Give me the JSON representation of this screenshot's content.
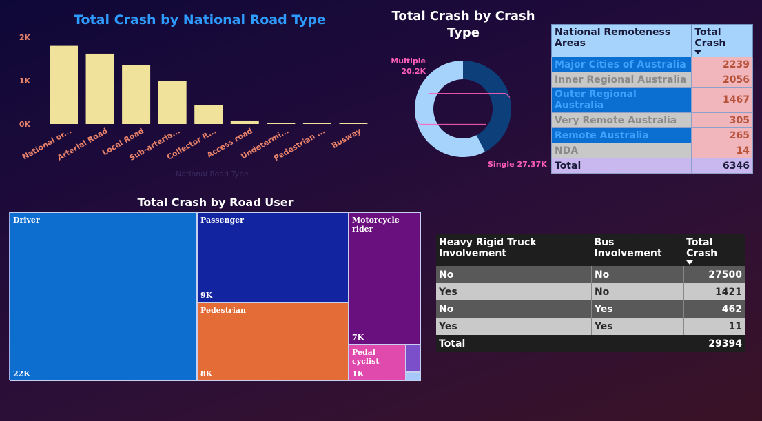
{
  "colors": {
    "bar": "#f0e29b",
    "bar_text": "#e8826a",
    "donut_multiple": "#0d3f7a",
    "donut_single": "#a6d3fb",
    "donut_label": "#ff5fb8"
  },
  "chart_data": [
    {
      "type": "bar",
      "title": "Total Crash by National Road Type",
      "xlabel": "National Road Type",
      "ylabel": "",
      "categories": [
        "National or...",
        "Arterial Road",
        "Local Road",
        "Sub-arteria...",
        "Collector R...",
        "Access road",
        "Undetermi...",
        "Pedestrian ...",
        "Busway"
      ],
      "values": [
        1800,
        1620,
        1360,
        990,
        440,
        80,
        8,
        5,
        3
      ],
      "ylim": [
        0,
        2000
      ],
      "yticks": [
        {
          "value": 0,
          "label": "0K"
        },
        {
          "value": 1000,
          "label": "1K"
        },
        {
          "value": 2000,
          "label": "2K"
        }
      ],
      "grid": false
    },
    {
      "type": "pie",
      "title": "Total Crash by Crash Type",
      "donut": true,
      "categories": [
        "Multiple",
        "Single"
      ],
      "values": [
        20200,
        27370
      ],
      "labels": [
        "20.2K",
        "Single 27.37K"
      ]
    },
    {
      "type": "table",
      "title": "",
      "columns": [
        "National Remoteness Areas",
        "Total Crash"
      ],
      "rows": [
        {
          "area": "Major Cities of Australia",
          "value": "2239",
          "style": "blue"
        },
        {
          "area": "Inner Regional Australia",
          "value": "2056",
          "style": "gray"
        },
        {
          "area": "Outer Regional Australia",
          "value": "1467",
          "style": "blue"
        },
        {
          "area": "Very Remote Australia",
          "value": "305",
          "style": "gray"
        },
        {
          "area": "Remote Australia",
          "value": "265",
          "style": "blue"
        },
        {
          "area": "NDA",
          "value": "14",
          "style": "gray"
        }
      ],
      "total_label": "Total",
      "total_value": "6346"
    },
    {
      "type": "table",
      "title": "Total Crash by Road User",
      "subtype": "treemap",
      "tiles": [
        {
          "name": "Driver",
          "label": "22K",
          "value": 22000,
          "color": "#0d6ecf"
        },
        {
          "name": "Passenger",
          "label": "9K",
          "value": 9000,
          "color": "#1324a0"
        },
        {
          "name": "Pedestrian",
          "label": "8K",
          "value": 8000,
          "color": "#e46c37"
        },
        {
          "name": "Motorcycle rider",
          "label": "7K",
          "value": 7000,
          "color": "#6a0f7e"
        },
        {
          "name": "Pedal cyclist",
          "label": "1K",
          "value": 1000,
          "color": "#e04aac"
        },
        {
          "name": "",
          "label": "",
          "value": 700,
          "color": "#7b4fc9"
        },
        {
          "name": "",
          "label": "",
          "value": 200,
          "color": "#a6c8fb"
        }
      ]
    },
    {
      "type": "table",
      "title": "",
      "columns": [
        "Heavy Rigid Truck Involvement",
        "Bus Involvement",
        "Total Crash"
      ],
      "rows": [
        [
          "No",
          "No",
          "27500"
        ],
        [
          "Yes",
          "No",
          "1421"
        ],
        [
          "No",
          "Yes",
          "462"
        ],
        [
          "Yes",
          "Yes",
          "11"
        ]
      ],
      "total_label": "Total",
      "total_value": "29394"
    }
  ]
}
